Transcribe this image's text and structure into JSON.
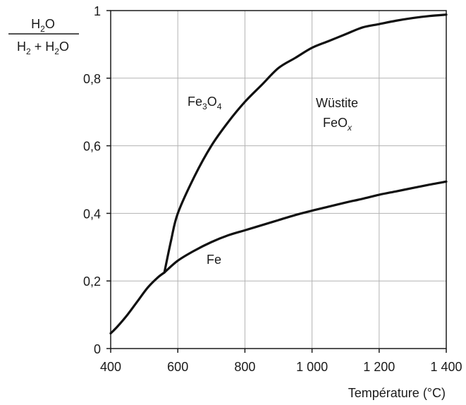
{
  "chart_data": {
    "type": "line",
    "ylabel": {
      "numerator": {
        "base": "H",
        "sub": "2",
        "rest": "O"
      },
      "denominator": {
        "a_base": "H",
        "a_sub": "2",
        "plus": " + ",
        "b_base": "H",
        "b_sub": "2",
        "b_rest": "O"
      }
    },
    "xlabel": "Température (°C)",
    "xlim": [
      400,
      1400
    ],
    "ylim": [
      0,
      1
    ],
    "xticks": [
      400,
      600,
      800,
      1000,
      1200,
      1400
    ],
    "xtick_labels": [
      "400",
      "600",
      "800",
      "1 000",
      "1 200",
      "1 400"
    ],
    "yticks": [
      0,
      0.2,
      0.4,
      0.6,
      0.8,
      1
    ],
    "ytick_labels": [
      "0",
      "0,2",
      "0,4",
      "0,6",
      "0,8",
      "1"
    ],
    "grid": true,
    "regions": {
      "fe3o4": {
        "base": "Fe",
        "sub1": "3",
        "mid": "O",
        "sub2": "4"
      },
      "wustite_line1": "Wüstite",
      "wustite_line2": {
        "base": "FeO",
        "sub": "x"
      },
      "fe": "Fe"
    },
    "series": [
      {
        "x": [
          400,
          420,
          450,
          480,
          510,
          540,
          560
        ],
        "y": [
          0.045,
          0.065,
          0.1,
          0.14,
          0.18,
          0.21,
          0.225
        ]
      },
      {
        "x": [
          560,
          580,
          600,
          650,
          700,
          750,
          800,
          850,
          900,
          950,
          1000,
          1050,
          1100,
          1150,
          1200,
          1250,
          1300,
          1350,
          1400
        ],
        "y": [
          0.225,
          0.32,
          0.4,
          0.51,
          0.6,
          0.67,
          0.73,
          0.78,
          0.83,
          0.86,
          0.89,
          0.91,
          0.93,
          0.95,
          0.96,
          0.97,
          0.978,
          0.984,
          0.988
        ]
      },
      {
        "x": [
          560,
          600,
          650,
          700,
          750,
          800,
          850,
          900,
          950,
          1000,
          1050,
          1100,
          1150,
          1200,
          1250,
          1300,
          1350,
          1400
        ],
        "y": [
          0.225,
          0.26,
          0.29,
          0.315,
          0.335,
          0.35,
          0.365,
          0.38,
          0.395,
          0.408,
          0.42,
          0.432,
          0.443,
          0.455,
          0.465,
          0.475,
          0.485,
          0.494
        ]
      }
    ]
  }
}
